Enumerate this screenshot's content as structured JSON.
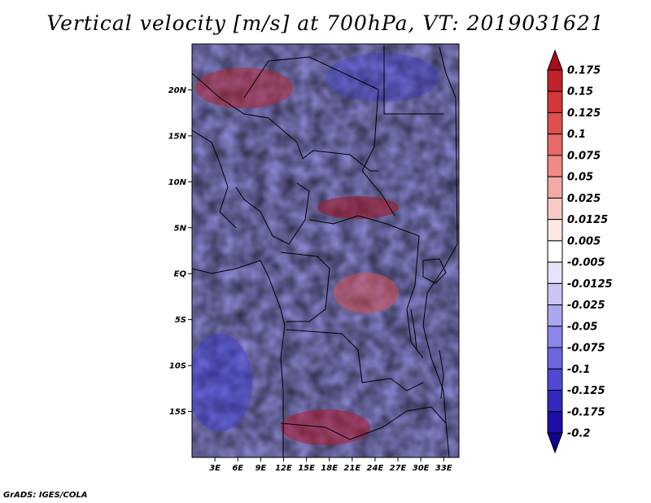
{
  "title": "Vertical velocity [m/s] at 700hPa, VT: 2019031621",
  "credit": "GrADS: IGES/COLA",
  "map": {
    "lon_range": [
      0,
      35
    ],
    "lat_range": [
      -20,
      25
    ],
    "lon_ticks": [
      "3E",
      "6E",
      "9E",
      "12E",
      "15E",
      "18E",
      "21E",
      "24E",
      "27E",
      "30E",
      "33E"
    ],
    "lat_ticks": [
      "20N",
      "15N",
      "10N",
      "5N",
      "EQ",
      "5S",
      "10S",
      "15S"
    ],
    "positive_color": "#b2182b",
    "negative_color": "#3a3ad6"
  },
  "colorbar": {
    "labels": [
      "0.175",
      "0.15",
      "0.125",
      "0.1",
      "0.075",
      "0.05",
      "0.025",
      "0.0125",
      "0.005",
      "-0.005",
      "-0.0125",
      "-0.025",
      "-0.05",
      "-0.075",
      "-0.1",
      "-0.125",
      "-0.175",
      "-0.2"
    ],
    "colors": [
      "#a50e1c",
      "#c0222c",
      "#d4363a",
      "#e0504e",
      "#e86a66",
      "#ef8a84",
      "#f4aaa4",
      "#f9cac6",
      "#fde8e6",
      "#ffffff",
      "#e6e4fb",
      "#c9c6f6",
      "#aaa6f0",
      "#8c86ea",
      "#6e66e0",
      "#4f48d4",
      "#3428c0",
      "#1e0ea6",
      "#120090"
    ]
  }
}
